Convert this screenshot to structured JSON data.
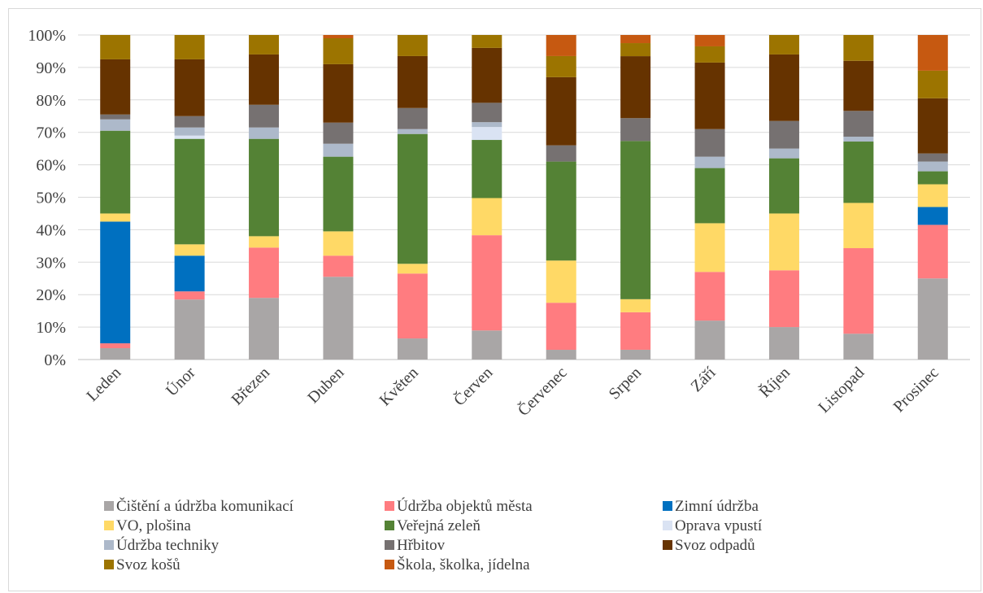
{
  "chart_data": {
    "type": "bar",
    "stacked": true,
    "normalized": true,
    "title": "",
    "xlabel": "",
    "ylabel": "",
    "ylim": [
      0,
      100
    ],
    "y_ticks": [
      "0%",
      "10%",
      "20%",
      "30%",
      "40%",
      "50%",
      "60%",
      "70%",
      "80%",
      "90%",
      "100%"
    ],
    "grid": true,
    "legend_position": "bottom",
    "categories": [
      "Leden",
      "Únor",
      "Březen",
      "Duben",
      "Květen",
      "Červen",
      "Červenec",
      "Srpen",
      "Září",
      "Říjen",
      "Listopad",
      "Prosinec"
    ],
    "series": [
      {
        "name": "Čištění a údržba komunikací",
        "color": "#a9a6a6",
        "values": [
          3.5,
          18.5,
          19,
          25.5,
          6.5,
          9,
          3,
          3,
          12,
          10,
          8,
          25
        ]
      },
      {
        "name": "Údržba objektů města",
        "color": "#ff7c80",
        "values": [
          1.5,
          2.5,
          15.5,
          6.5,
          20,
          29.5,
          14.5,
          11.5,
          15,
          17.5,
          26.5,
          16.5
        ]
      },
      {
        "name": "Zimní údržba",
        "color": "#0070c0",
        "values": [
          37.5,
          11,
          0,
          0,
          0,
          0,
          0,
          0,
          0,
          0,
          0,
          5.5
        ]
      },
      {
        "name": "VO, plošina",
        "color": "#ffd966",
        "values": [
          2.5,
          3.5,
          3.5,
          7.5,
          3,
          11.5,
          13,
          4,
          15,
          17.5,
          14,
          7
        ]
      },
      {
        "name": "Veřejná zeleň",
        "color": "#548235",
        "values": [
          25.5,
          32.5,
          30,
          23,
          40,
          18,
          30.5,
          48.5,
          17,
          17,
          19,
          4
        ]
      },
      {
        "name": "Oprava vpustí",
        "color": "#dae3f3",
        "values": [
          0,
          1,
          0,
          0,
          0,
          4,
          0,
          0,
          0,
          0,
          0,
          0
        ]
      },
      {
        "name": "Údržba techniky",
        "color": "#adb9ca",
        "values": [
          3.5,
          2.5,
          3.5,
          4,
          1.5,
          1.5,
          0,
          0,
          3.5,
          3,
          1.5,
          3
        ]
      },
      {
        "name": "Hřbitov",
        "color": "#767171",
        "values": [
          1.5,
          3.5,
          7,
          6.5,
          6.5,
          6,
          5,
          7,
          8.5,
          8.5,
          8,
          2.5
        ]
      },
      {
        "name": "Svoz odpadů",
        "color": "#663300",
        "values": [
          17,
          17.5,
          15.5,
          18,
          16,
          17,
          21,
          19,
          20.5,
          20.5,
          15.5,
          17
        ]
      },
      {
        "name": "Svoz košů",
        "color": "#9c7400",
        "values": [
          7.5,
          7.5,
          6,
          8,
          6.5,
          4,
          6.5,
          4,
          5,
          6,
          8,
          8.5
        ]
      },
      {
        "name": "Škola, školka, jídelna",
        "color": "#c65911",
        "values": [
          0,
          0,
          0,
          1,
          0,
          0,
          6.5,
          2.5,
          3.5,
          0,
          0,
          11
        ]
      }
    ]
  }
}
